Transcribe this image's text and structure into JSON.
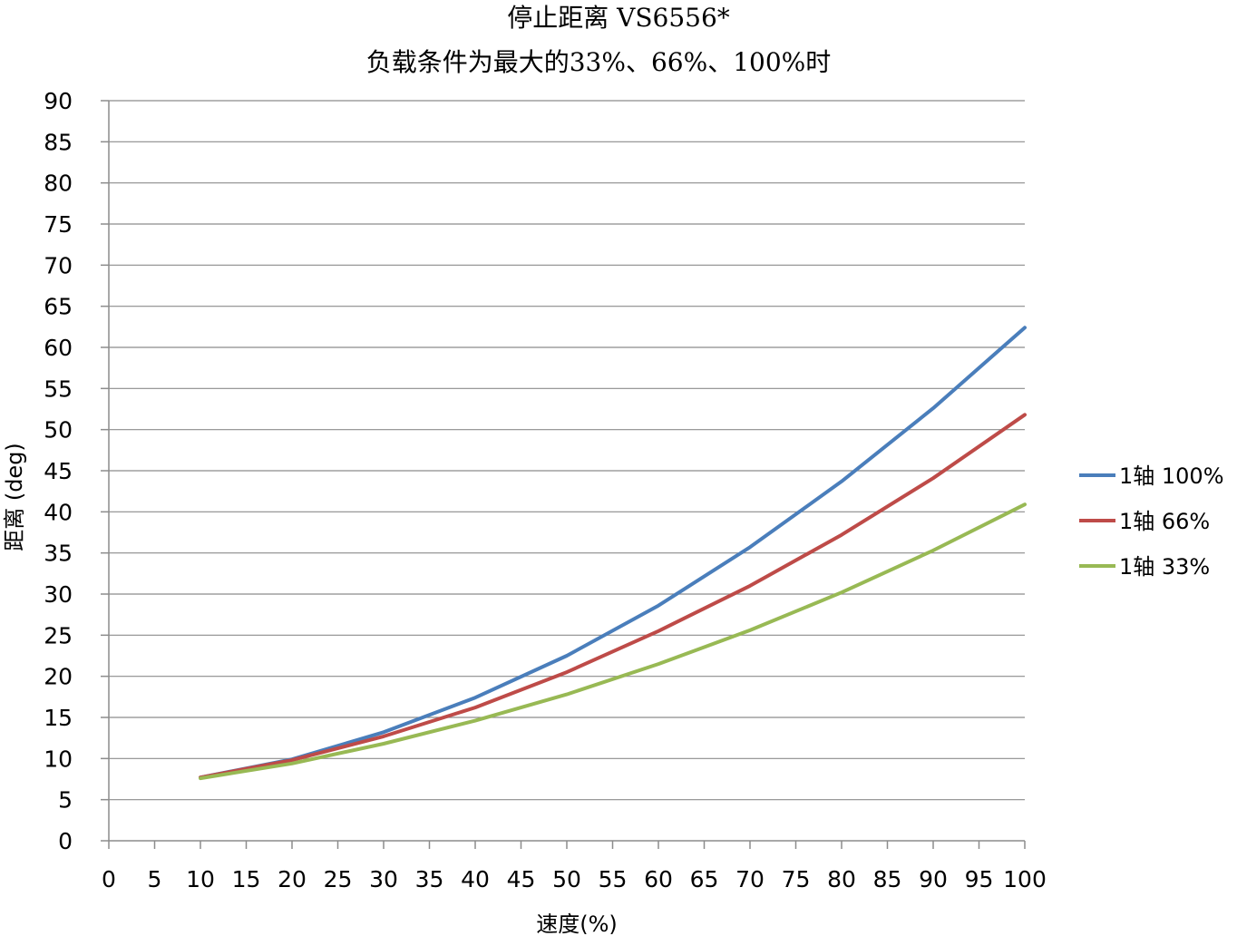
{
  "chart_data": {
    "type": "line",
    "title": "停止距离 VS6556*",
    "subtitle": "负载条件为最大的33%、66%、100%时",
    "xlabel": "速度(%)",
    "ylabel": "距离 (deg)",
    "xlim": [
      0,
      100
    ],
    "ylim": [
      0,
      90
    ],
    "x_ticks": [
      "0",
      "5",
      "10",
      "15",
      "20",
      "25",
      "30",
      "35",
      "40",
      "45",
      "50",
      "55",
      "60",
      "65",
      "70",
      "75",
      "80",
      "85",
      "90",
      "95",
      "100"
    ],
    "y_ticks": [
      "0",
      "5",
      "10",
      "15",
      "20",
      "25",
      "30",
      "35",
      "40",
      "45",
      "50",
      "55",
      "60",
      "65",
      "70",
      "75",
      "80",
      "85",
      "90"
    ],
    "grid": "horizontal",
    "legend_position": "right",
    "x": [
      10,
      20,
      30,
      40,
      50,
      60,
      70,
      80,
      90,
      100
    ],
    "series": [
      {
        "name": "1轴 100%",
        "color": "#4a7ebb",
        "values": [
          7.7,
          9.9,
          13.2,
          17.4,
          22.5,
          28.6,
          35.7,
          43.7,
          52.6,
          62.4
        ]
      },
      {
        "name": "1轴 66%",
        "color": "#be4b48",
        "values": [
          7.7,
          9.8,
          12.7,
          16.2,
          20.5,
          25.5,
          31.0,
          37.2,
          44.1,
          51.8
        ]
      },
      {
        "name": "1轴 33%",
        "color": "#98b954",
        "values": [
          7.6,
          9.4,
          11.8,
          14.6,
          17.8,
          21.5,
          25.6,
          30.2,
          35.3,
          40.9
        ]
      }
    ]
  }
}
